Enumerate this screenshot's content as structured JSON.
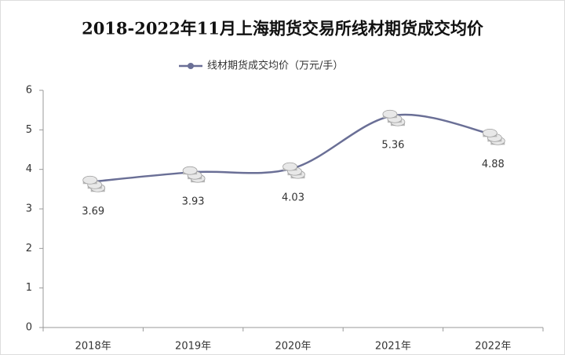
{
  "chart_data": {
    "type": "line",
    "title": "2018-2022年11月上海期货交易所线材期货成交均价",
    "categories": [
      "2018年",
      "2019年",
      "2020年",
      "2021年",
      "2022年"
    ],
    "series": [
      {
        "name": "线材期货成交均价（万元/手）",
        "color": "#6a6f96",
        "values": [
          3.69,
          3.93,
          4.03,
          5.36,
          4.88
        ]
      }
    ],
    "ylim": [
      0,
      6
    ],
    "yticks": [
      0,
      1,
      2,
      3,
      4,
      5,
      6
    ],
    "grid": false
  }
}
